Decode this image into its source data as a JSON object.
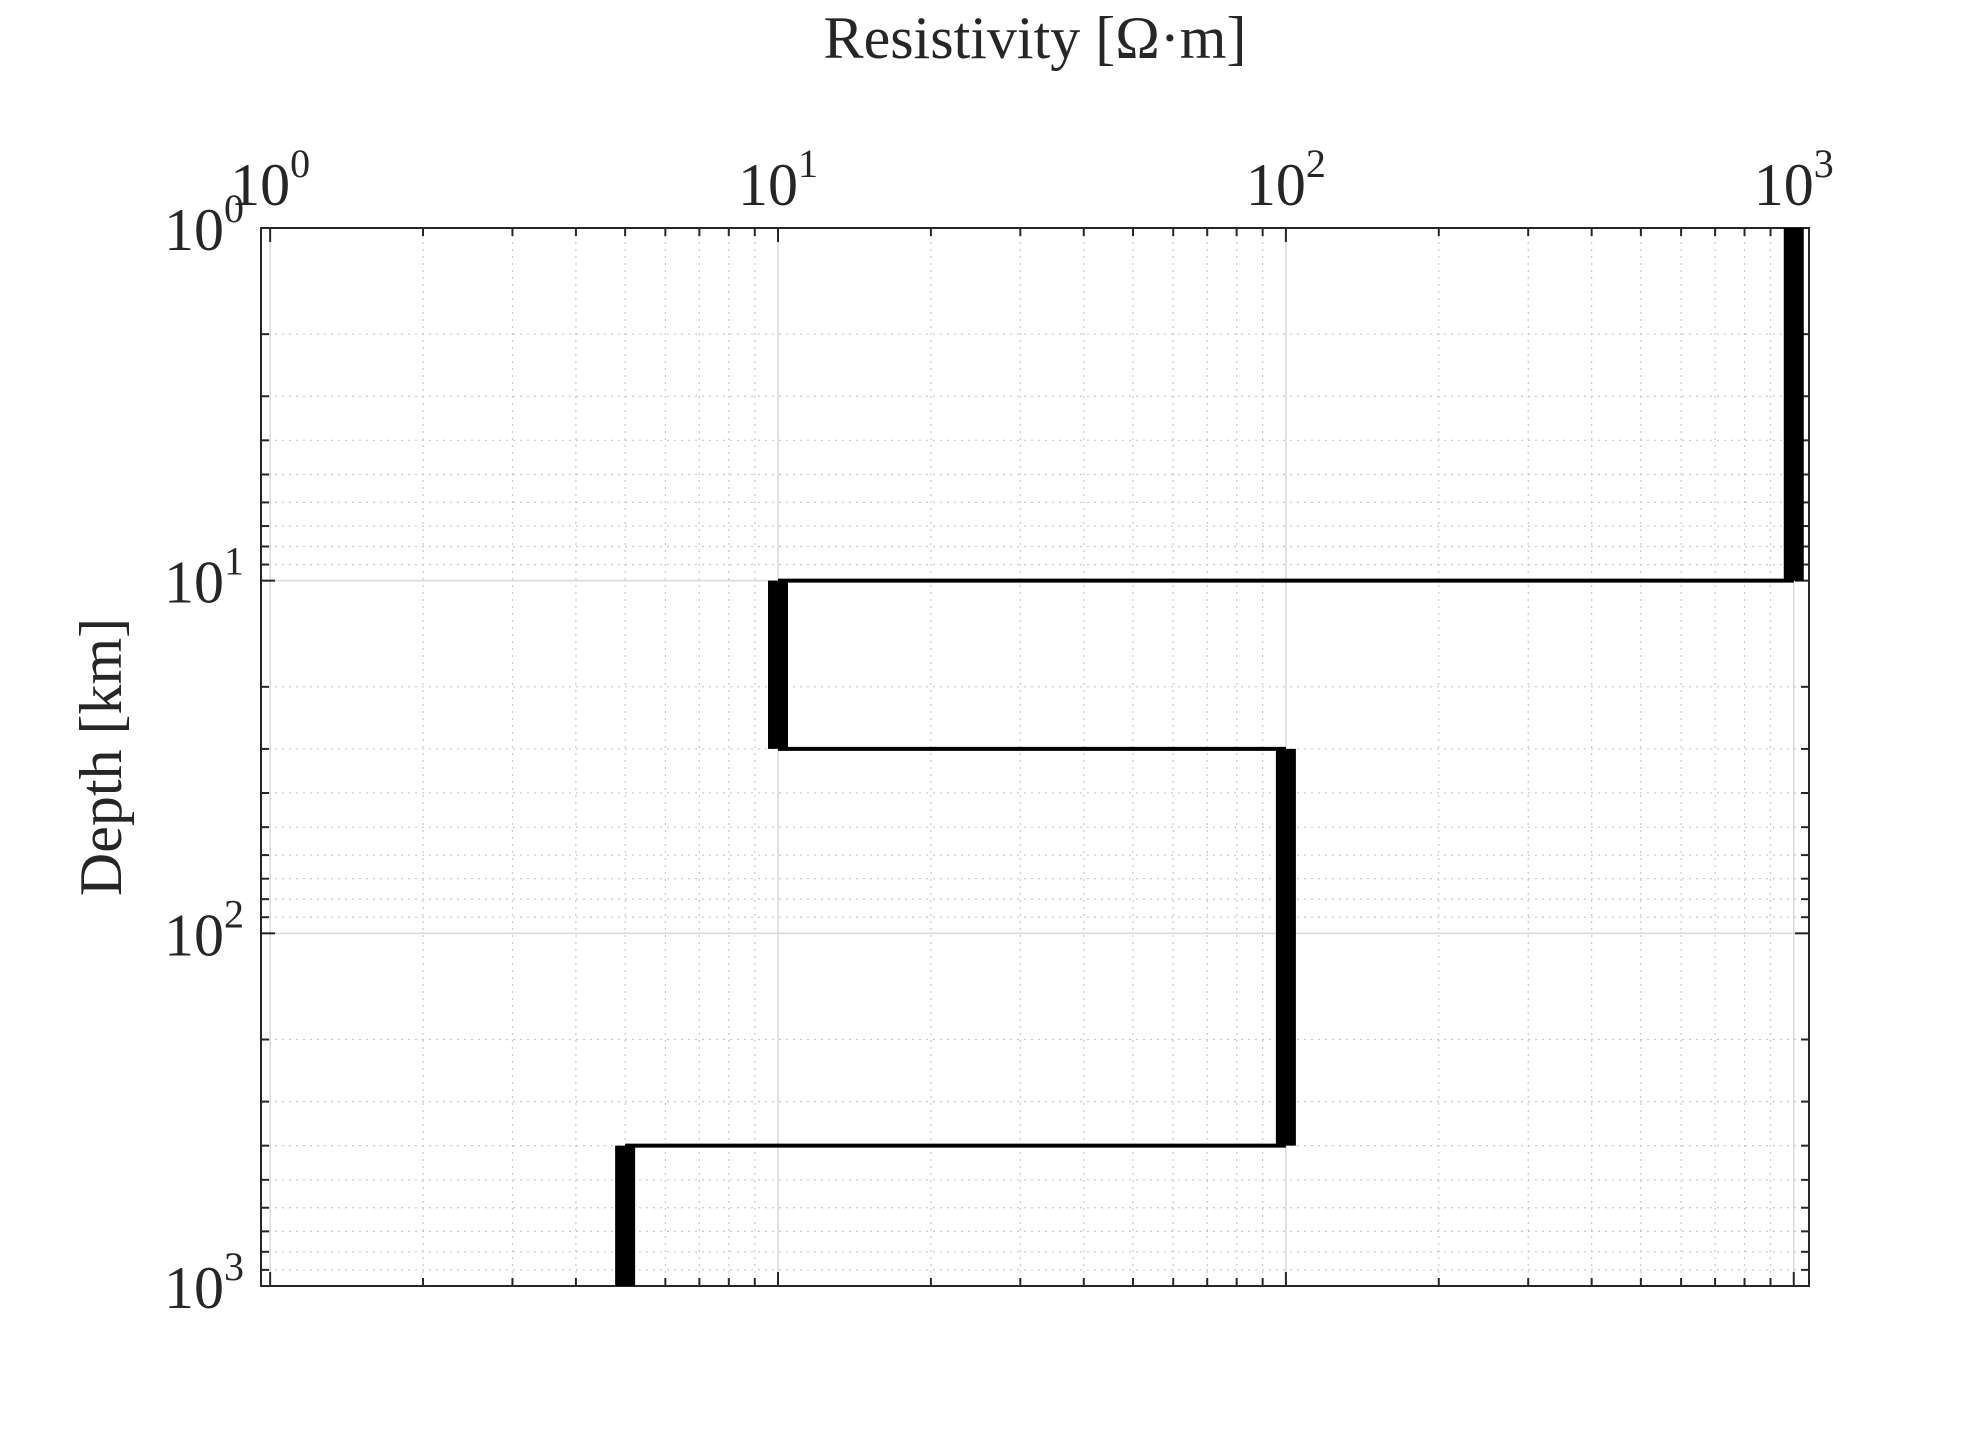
{
  "chart_data": {
    "type": "line",
    "title": "",
    "xlabel": "Resistivity [Ω·m]",
    "ylabel": "Depth [km]",
    "x_scale": "log",
    "y_scale": "log",
    "y_reversed": true,
    "x_axis_position": "top",
    "xlim": [
      0.96,
      1.05
    ],
    "xlim_exp": [
      -0.018,
      3.03
    ],
    "ylim": [
      1,
      1000
    ],
    "x_ticks": [
      {
        "base": "10",
        "exp": "0"
      },
      {
        "base": "10",
        "exp": "1"
      },
      {
        "base": "10",
        "exp": "2"
      },
      {
        "base": "10",
        "exp": "3"
      }
    ],
    "y_ticks": [
      {
        "base": "10",
        "exp": "0"
      },
      {
        "base": "10",
        "exp": "1"
      },
      {
        "base": "10",
        "exp": "2"
      },
      {
        "base": "10",
        "exp": "3"
      }
    ],
    "grid": true,
    "minor_grid": true,
    "color": "#000000",
    "series": [
      {
        "layers": [
          {
            "resistivity": 1000,
            "top_depth": 1,
            "bottom_depth": 10
          },
          {
            "resistivity": 10,
            "top_depth": 10,
            "bottom_depth": 30
          },
          {
            "resistivity": 100,
            "top_depth": 30,
            "bottom_depth": 400
          },
          {
            "resistivity": 5,
            "top_depth": 400,
            "bottom_depth": 1000
          }
        ]
      }
    ]
  }
}
